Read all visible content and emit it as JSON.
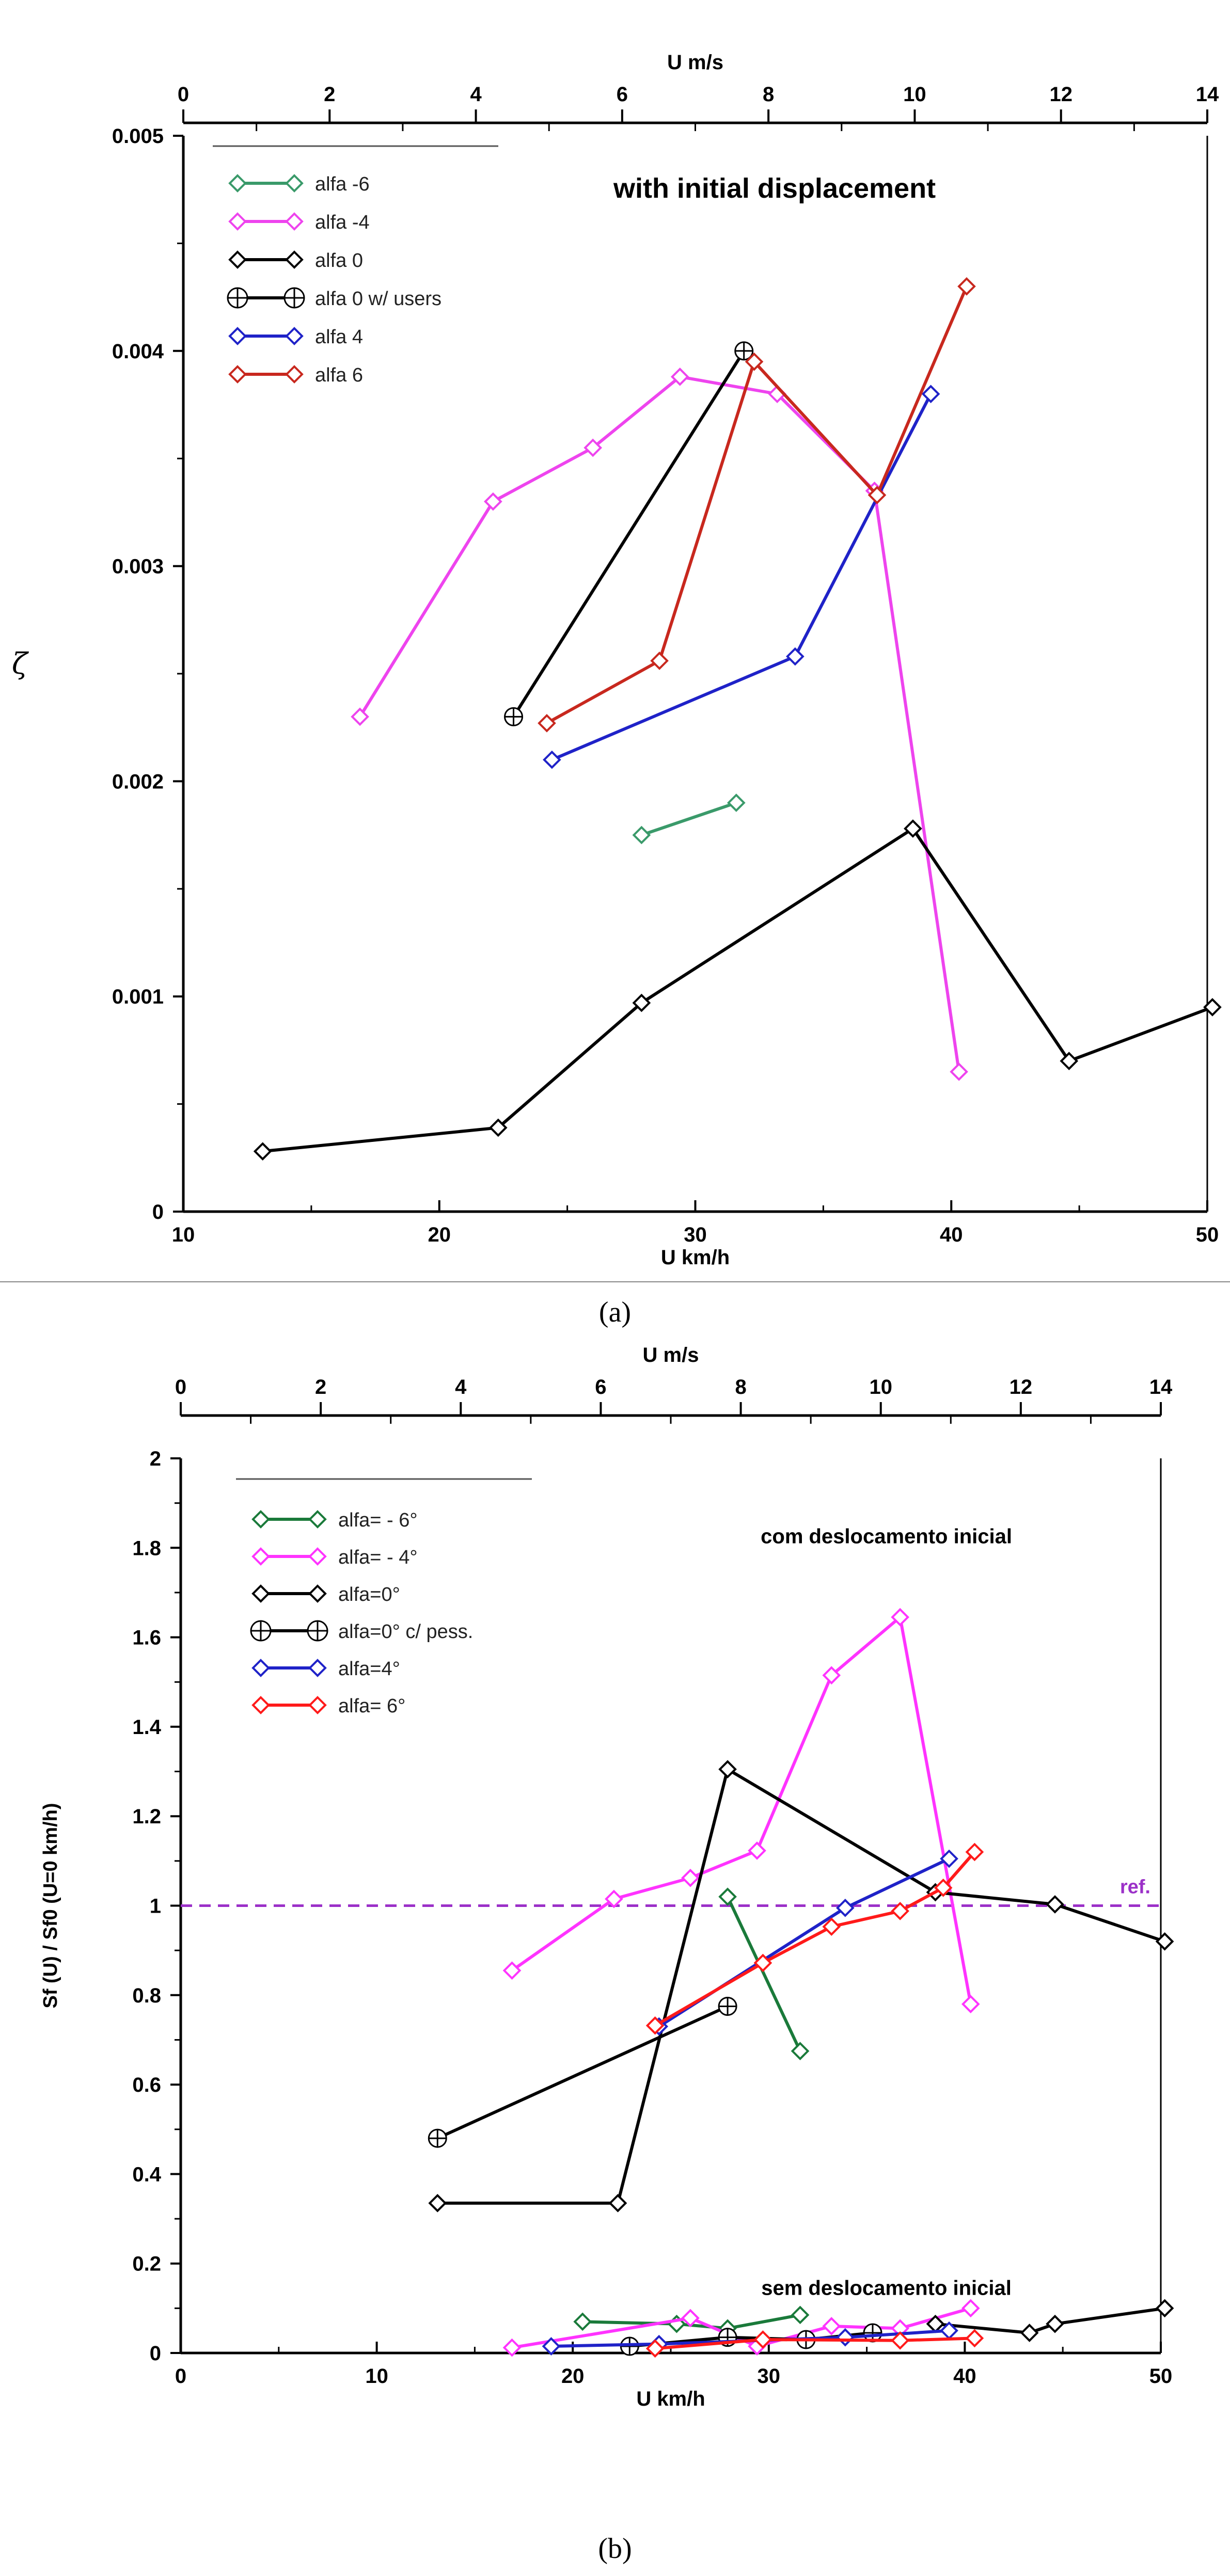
{
  "colors": {
    "alfa_m6_a": "#3a9a6a",
    "alfa_m4": "#ee44ee",
    "alfa_0": "#000000",
    "alfa_0_users": "#000000",
    "alfa_4": "#1f22c8",
    "alfa_6_a": "#c8281e",
    "alfa_m6_b": "#1a7a3a",
    "alfa_m4_b": "#ff33ff",
    "alfa_6_b": "#ff1a1a",
    "ref": "#9b30c8"
  },
  "panel_a": {
    "label_text": "(a)",
    "chart_data": {
      "type": "line",
      "title": "with initial displacement",
      "xlabel": "U  km/h",
      "x2label": "U  m/s",
      "ylabel": "ζ",
      "xlim": [
        10,
        50
      ],
      "x2lim": [
        0,
        14
      ],
      "ylim": [
        0,
        0.005
      ],
      "x_ticks": [
        10,
        20,
        30,
        40,
        50
      ],
      "x_tick_labels": [
        "10",
        "20",
        "30",
        "40",
        "50"
      ],
      "x2_ticks": [
        0,
        2,
        4,
        6,
        8,
        10,
        12,
        14
      ],
      "x2_tick_labels": [
        "0",
        "2",
        "4",
        "6",
        "8",
        "10",
        "12",
        "14"
      ],
      "y_ticks": [
        0,
        0.001,
        0.002,
        0.003,
        0.004,
        0.005
      ],
      "y_tick_labels": [
        "0",
        "0.001",
        "0.002",
        "0.003",
        "0.004",
        "0.005"
      ],
      "legend_position": "top-left",
      "series": [
        {
          "name": "alfa -6",
          "color_key": "alfa_m6_a",
          "marker": "diamond",
          "x": [
            27.9,
            31.6
          ],
          "y": [
            0.00175,
            0.0019
          ]
        },
        {
          "name": "alfa -4",
          "color_key": "alfa_m4",
          "marker": "diamond",
          "x": [
            16.9,
            22.1,
            26.0,
            29.4,
            33.2,
            37.0,
            40.3
          ],
          "y": [
            0.0023,
            0.0033,
            0.00355,
            0.00388,
            0.0038,
            0.00335,
            0.00065
          ]
        },
        {
          "name": "alfa 0",
          "color_key": "alfa_0",
          "marker": "diamond",
          "x": [
            13.1,
            22.3,
            27.9,
            38.5,
            44.6,
            50.2
          ],
          "y": [
            0.00028,
            0.00039,
            0.00097,
            0.00178,
            0.0007,
            0.00095
          ]
        },
        {
          "name": "alfa 0 w/ users",
          "color_key": "alfa_0_users",
          "marker": "crosscircle",
          "x": [
            22.9,
            31.9
          ],
          "y": [
            0.0023,
            0.004
          ]
        },
        {
          "name": "alfa 4",
          "color_key": "alfa_4",
          "marker": "diamond",
          "x": [
            24.4,
            33.9,
            39.2
          ],
          "y": [
            0.0021,
            0.00258,
            0.0038
          ]
        },
        {
          "name": "alfa 6",
          "color_key": "alfa_6_a",
          "marker": "diamond",
          "x": [
            24.2,
            28.6,
            32.3,
            37.1,
            40.6
          ],
          "y": [
            0.00227,
            0.00256,
            0.00395,
            0.00333,
            0.0043
          ]
        }
      ]
    }
  },
  "panel_b": {
    "label_text": "(b)",
    "chart_data": {
      "type": "line",
      "xlabel": "U  km/h",
      "x2label": "U  m/s",
      "ylabel": "Sf (U) / Sf0 (U=0 km/h)",
      "xlim": [
        0,
        50
      ],
      "x2lim": [
        0,
        14
      ],
      "ylim": [
        0,
        2
      ],
      "x_ticks": [
        0,
        10,
        20,
        30,
        40,
        50
      ],
      "x_tick_labels": [
        "0",
        "10",
        "20",
        "30",
        "40",
        "50"
      ],
      "x2_ticks": [
        0,
        2,
        4,
        6,
        8,
        10,
        12,
        14
      ],
      "x2_tick_labels": [
        "0",
        "2",
        "4",
        "6",
        "8",
        "10",
        "12",
        "14"
      ],
      "y_ticks": [
        0,
        0.2,
        0.4,
        0.6,
        0.8,
        1,
        1.2,
        1.4,
        1.6,
        1.8,
        2
      ],
      "y_tick_labels": [
        "0",
        "0.2",
        "0.4",
        "0.6",
        "0.8",
        "1",
        "1.2",
        "1.4",
        "1.6",
        "1.8",
        "2"
      ],
      "legend_position": "top-left",
      "annotations": [
        {
          "text": "com deslocamento inicial",
          "x": 36,
          "y": 1.81
        },
        {
          "text": "sem deslocamento inicial",
          "x": 36,
          "y": 0.13
        }
      ],
      "ref_line": {
        "y": 1.0,
        "label": "ref."
      },
      "series": [
        {
          "name": "alfa= - 6°",
          "color_key": "alfa_m6_b",
          "marker": "diamond",
          "x": [
            27.9,
            31.6
          ],
          "y": [
            1.02,
            0.675
          ]
        },
        {
          "name": "alfa= - 4°",
          "color_key": "alfa_m4_b",
          "marker": "diamond",
          "x": [
            16.9,
            22.1,
            26.0,
            29.4,
            33.2,
            36.7,
            40.3
          ],
          "y": [
            0.855,
            1.015,
            1.062,
            1.123,
            1.515,
            1.645,
            0.78
          ]
        },
        {
          "name": "alfa=0°",
          "color_key": "alfa_0",
          "marker": "diamond",
          "x": [
            13.1,
            22.3,
            27.9,
            38.5,
            44.6,
            50.2
          ],
          "y": [
            0.335,
            0.335,
            1.305,
            1.03,
            1.003,
            0.92
          ]
        },
        {
          "name": "alfa=0° c/ pess.",
          "color_key": "alfa_0_users",
          "marker": "crosscircle",
          "x": [
            13.1,
            27.9
          ],
          "y": [
            0.48,
            0.775
          ]
        },
        {
          "name": "alfa=4°",
          "color_key": "alfa_4",
          "marker": "diamond",
          "x": [
            24.4,
            33.9,
            39.2
          ],
          "y": [
            0.73,
            0.995,
            1.105
          ]
        },
        {
          "name": "alfa= 6°",
          "color_key": "alfa_6_b",
          "marker": "diamond",
          "x": [
            24.2,
            29.7,
            33.2,
            36.7,
            38.9,
            40.5
          ],
          "y": [
            0.732,
            0.872,
            0.953,
            0.988,
            1.04,
            1.12
          ]
        },
        {
          "name": "",
          "legend": false,
          "color_key": "alfa_m6_b",
          "marker": "diamond",
          "x": [
            20.5,
            25.3,
            27.9,
            31.6
          ],
          "y": [
            0.07,
            0.065,
            0.055,
            0.085
          ]
        },
        {
          "name": "",
          "legend": false,
          "color_key": "alfa_m4_b",
          "marker": "diamond",
          "x": [
            16.9,
            26.0,
            29.4,
            33.2,
            36.7,
            40.3
          ],
          "y": [
            0.012,
            0.078,
            0.015,
            0.06,
            0.055,
            0.1
          ]
        },
        {
          "name": "",
          "legend": false,
          "color_key": "alfa_0",
          "marker": "diamond",
          "x": [
            38.5,
            43.3,
            44.6,
            50.2
          ],
          "y": [
            0.065,
            0.045,
            0.065,
            0.1
          ]
        },
        {
          "name": "",
          "legend": false,
          "color_key": "alfa_0_users",
          "marker": "crosscircle",
          "x": [
            22.9,
            27.9,
            31.9,
            35.3
          ],
          "y": [
            0.015,
            0.035,
            0.03,
            0.045
          ]
        },
        {
          "name": "",
          "legend": false,
          "color_key": "alfa_4",
          "marker": "diamond",
          "x": [
            18.9,
            24.4,
            33.9,
            39.2
          ],
          "y": [
            0.015,
            0.02,
            0.035,
            0.05
          ]
        },
        {
          "name": "",
          "legend": false,
          "color_key": "alfa_6_b",
          "marker": "diamond",
          "x": [
            24.2,
            29.7,
            36.7,
            40.5
          ],
          "y": [
            0.01,
            0.03,
            0.028,
            0.033
          ]
        }
      ]
    }
  }
}
